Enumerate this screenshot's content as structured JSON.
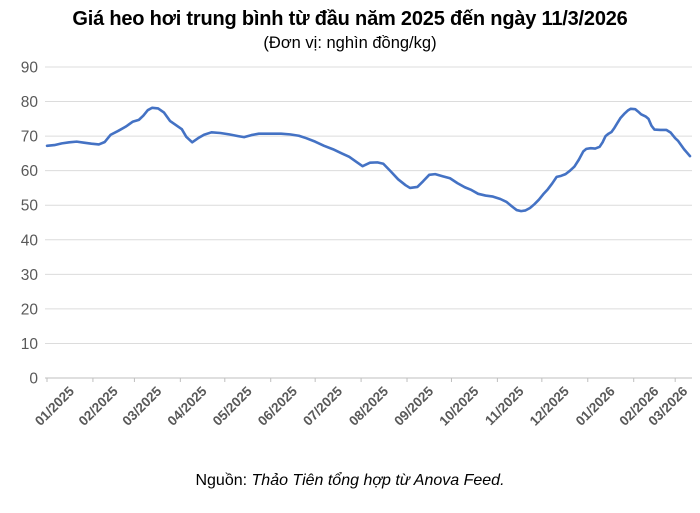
{
  "chart_data": {
    "type": "line",
    "title": "Giá heo hơi trung bình từ đầu năm 2025 đến ngày 11/3/2026",
    "subtitle": "(Đơn vị: nghìn đồng/kg)",
    "ylim": [
      0,
      90
    ],
    "ytick_step": 10,
    "grid": "horizontal-only",
    "legend_position": "none",
    "line_color": "#4472C4",
    "axis_text_color": "#595959",
    "gridline_color": "#DCDCDC",
    "axis_line_color": "#BFBFBF",
    "x_tick_labels": [
      "01/2025",
      "02/2025",
      "03/2025",
      "04/2025",
      "05/2025",
      "06/2025",
      "07/2025",
      "08/2025",
      "09/2025",
      "10/2025",
      "11/2025",
      "12/2025",
      "01/2026",
      "02/2026",
      "03/2026"
    ],
    "series": [
      {
        "points": [
          [
            "2025-01-01",
            67.2
          ],
          [
            "2025-01-06",
            67.4
          ],
          [
            "2025-01-11",
            67.9
          ],
          [
            "2025-01-16",
            68.2
          ],
          [
            "2025-01-21",
            68.4
          ],
          [
            "2025-01-26",
            68.1
          ],
          [
            "2025-01-31",
            67.8
          ],
          [
            "2025-02-05",
            67.6
          ],
          [
            "2025-02-09",
            68.3
          ],
          [
            "2025-02-13",
            70.4
          ],
          [
            "2025-02-18",
            71.5
          ],
          [
            "2025-02-23",
            72.7
          ],
          [
            "2025-02-28",
            74.2
          ],
          [
            "2025-03-04",
            74.7
          ],
          [
            "2025-03-07",
            75.9
          ],
          [
            "2025-03-10",
            77.5
          ],
          [
            "2025-03-13",
            78.2
          ],
          [
            "2025-03-17",
            78.0
          ],
          [
            "2025-03-21",
            76.8
          ],
          [
            "2025-03-25",
            74.4
          ],
          [
            "2025-03-29",
            73.2
          ],
          [
            "2025-04-02",
            72.0
          ],
          [
            "2025-04-05",
            69.8
          ],
          [
            "2025-04-09",
            68.2
          ],
          [
            "2025-04-13",
            69.4
          ],
          [
            "2025-04-17",
            70.4
          ],
          [
            "2025-04-22",
            71.1
          ],
          [
            "2025-04-28",
            70.9
          ],
          [
            "2025-05-04",
            70.5
          ],
          [
            "2025-05-10",
            70.0
          ],
          [
            "2025-05-14",
            69.7
          ],
          [
            "2025-05-19",
            70.3
          ],
          [
            "2025-05-24",
            70.7
          ],
          [
            "2025-06-01",
            70.7
          ],
          [
            "2025-06-08",
            70.7
          ],
          [
            "2025-06-14",
            70.5
          ],
          [
            "2025-06-20",
            70.1
          ],
          [
            "2025-06-25",
            69.4
          ],
          [
            "2025-07-01",
            68.4
          ],
          [
            "2025-07-07",
            67.2
          ],
          [
            "2025-07-13",
            66.2
          ],
          [
            "2025-07-19",
            65.0
          ],
          [
            "2025-07-24",
            64.0
          ],
          [
            "2025-07-29",
            62.5
          ],
          [
            "2025-08-02",
            61.3
          ],
          [
            "2025-08-07",
            62.3
          ],
          [
            "2025-08-12",
            62.4
          ],
          [
            "2025-08-16",
            62.0
          ],
          [
            "2025-08-21",
            59.8
          ],
          [
            "2025-08-26",
            57.5
          ],
          [
            "2025-08-31",
            55.8
          ],
          [
            "2025-09-03",
            55.0
          ],
          [
            "2025-09-08",
            55.3
          ],
          [
            "2025-09-12",
            57.0
          ],
          [
            "2025-09-16",
            58.8
          ],
          [
            "2025-09-20",
            59.0
          ],
          [
            "2025-09-25",
            58.4
          ],
          [
            "2025-09-30",
            57.8
          ],
          [
            "2025-10-05",
            56.4
          ],
          [
            "2025-10-10",
            55.2
          ],
          [
            "2025-10-14",
            54.5
          ],
          [
            "2025-10-19",
            53.3
          ],
          [
            "2025-10-24",
            52.8
          ],
          [
            "2025-10-29",
            52.5
          ],
          [
            "2025-11-03",
            51.8
          ],
          [
            "2025-11-07",
            51.0
          ],
          [
            "2025-11-11",
            49.6
          ],
          [
            "2025-11-14",
            48.6
          ],
          [
            "2025-11-17",
            48.3
          ],
          [
            "2025-11-20",
            48.5
          ],
          [
            "2025-11-23",
            49.2
          ],
          [
            "2025-11-26",
            50.3
          ],
          [
            "2025-11-29",
            51.6
          ],
          [
            "2025-12-02",
            53.2
          ],
          [
            "2025-12-05",
            54.6
          ],
          [
            "2025-12-08",
            56.3
          ],
          [
            "2025-12-11",
            58.2
          ],
          [
            "2025-12-14",
            58.5
          ],
          [
            "2025-12-17",
            59.0
          ],
          [
            "2025-12-20",
            60.0
          ],
          [
            "2025-12-23",
            61.2
          ],
          [
            "2025-12-26",
            63.2
          ],
          [
            "2025-12-29",
            65.6
          ],
          [
            "2025-12-31",
            66.3
          ],
          [
            "2026-01-03",
            66.5
          ],
          [
            "2026-01-06",
            66.4
          ],
          [
            "2026-01-09",
            66.9
          ],
          [
            "2026-01-11",
            68.2
          ],
          [
            "2026-01-13",
            70.0
          ],
          [
            "2026-01-15",
            70.7
          ],
          [
            "2026-01-17",
            71.2
          ],
          [
            "2026-01-19",
            72.4
          ],
          [
            "2026-01-21",
            73.8
          ],
          [
            "2026-01-23",
            75.2
          ],
          [
            "2026-01-26",
            76.6
          ],
          [
            "2026-01-28",
            77.4
          ],
          [
            "2026-01-30",
            77.9
          ],
          [
            "2026-02-02",
            77.8
          ],
          [
            "2026-02-04",
            77.1
          ],
          [
            "2026-02-06",
            76.3
          ],
          [
            "2026-02-09",
            75.7
          ],
          [
            "2026-02-11",
            75.0
          ],
          [
            "2026-02-13",
            73.0
          ],
          [
            "2026-02-15",
            71.9
          ],
          [
            "2026-02-19",
            71.8
          ],
          [
            "2026-02-23",
            71.8
          ],
          [
            "2026-02-26",
            71.0
          ],
          [
            "2026-03-01",
            69.4
          ],
          [
            "2026-03-03",
            68.6
          ],
          [
            "2026-03-05",
            67.4
          ],
          [
            "2026-03-07",
            66.2
          ],
          [
            "2026-03-09",
            65.2
          ],
          [
            "2026-03-11",
            64.2
          ]
        ]
      }
    ]
  },
  "source": {
    "prefix": "Nguồn:",
    "text": "Thảo Tiên tổng hợp từ Anova Feed."
  }
}
